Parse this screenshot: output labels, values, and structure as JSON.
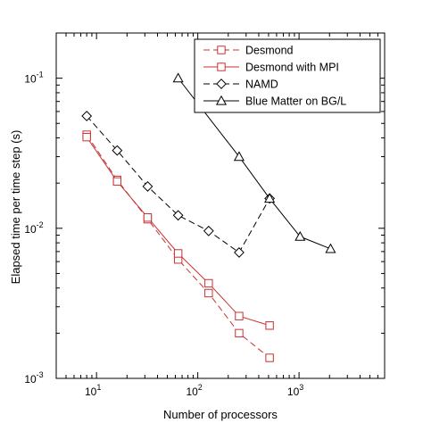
{
  "chart_data": {
    "type": "line",
    "title": "",
    "xlabel": "Number of processors",
    "ylabel": "Elapsed time per time step (s)",
    "xscale": "log",
    "yscale": "log",
    "xlim": [
      4,
      7000
    ],
    "ylim": [
      0.001,
      0.2
    ],
    "grid": false,
    "legend_position": "top-right",
    "x_ticks": [
      {
        "value": 10,
        "base": "10",
        "exp": "1"
      },
      {
        "value": 100,
        "base": "10",
        "exp": "2"
      },
      {
        "value": 1000,
        "base": "10",
        "exp": "3"
      }
    ],
    "y_ticks": [
      {
        "value": 0.001,
        "base": "10",
        "exp": "-3"
      },
      {
        "value": 0.01,
        "base": "10",
        "exp": "-2"
      },
      {
        "value": 0.1,
        "base": "10",
        "exp": "-1"
      }
    ],
    "series": [
      {
        "name": "Desmond",
        "color": "#c83232",
        "dash": "dashed",
        "marker": "square",
        "x": [
          8,
          16,
          32,
          64,
          128,
          256,
          512
        ],
        "y": [
          0.042,
          0.021,
          0.0115,
          0.0062,
          0.0037,
          0.002,
          0.00137
        ]
      },
      {
        "name": "Desmond with MPI",
        "color": "#c83232",
        "dash": "solid",
        "marker": "square",
        "x": [
          8,
          16,
          32,
          64,
          128,
          256,
          512
        ],
        "y": [
          0.0405,
          0.0205,
          0.0118,
          0.0068,
          0.0043,
          0.0026,
          0.00225
        ]
      },
      {
        "name": "NAMD",
        "color": "#000000",
        "dash": "dashed",
        "marker": "diamond",
        "x": [
          8,
          16,
          32,
          64,
          128,
          256,
          512
        ],
        "y": [
          0.056,
          0.033,
          0.019,
          0.0122,
          0.0096,
          0.0069,
          0.0158
        ]
      },
      {
        "name": "Blue Matter on BG/L",
        "color": "#000000",
        "dash": "solid",
        "marker": "triangle",
        "x": [
          64,
          256,
          512,
          1024,
          2048
        ],
        "y": [
          0.1,
          0.03,
          0.0158,
          0.0088,
          0.0073
        ]
      }
    ]
  }
}
